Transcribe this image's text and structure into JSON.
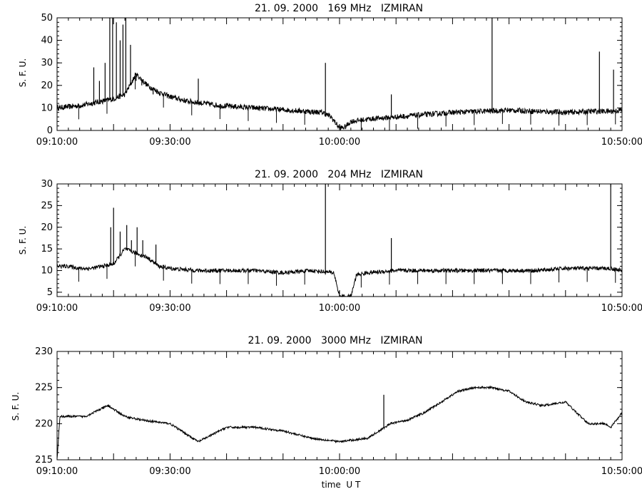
{
  "chart_data": [
    {
      "type": "line",
      "title": "21. 09. 2000   169 MHz   IZMIRAN",
      "xlabel": "",
      "ylabel": "S. F. U.",
      "xlim": [
        "09:10:00",
        "10:50:00"
      ],
      "xticks": [
        "09:10:00",
        "09:30:00",
        "10:00:00",
        "10:50:00"
      ],
      "ylim": [
        0,
        50
      ],
      "yticks": [
        "0",
        "10",
        "20",
        "30",
        "40",
        "50"
      ],
      "series": [
        {
          "color": "#000000",
          "x": [
            "09:10:00",
            "09:12:00",
            "09:14:00",
            "09:16:00",
            "09:18:00",
            "09:20:00",
            "09:22:00",
            "09:24:00",
            "09:26:00",
            "09:28:00",
            "09:30:00",
            "09:33:00",
            "09:36:00",
            "09:39:00",
            "09:42:00",
            "09:45:00",
            "09:48:00",
            "09:51:00",
            "09:54:00",
            "09:57:00",
            "09:58:30",
            "10:00:00",
            "10:01:00",
            "10:02:00",
            "10:05:00",
            "10:10:00",
            "10:15:00",
            "10:20:00",
            "10:25:00",
            "10:30:00",
            "10:35:00",
            "10:40:00",
            "10:45:00",
            "10:48:00",
            "10:50:00"
          ],
          "y": [
            10,
            10.5,
            11,
            12,
            13,
            14,
            16,
            25,
            20,
            17,
            15,
            13,
            12,
            11,
            10.5,
            10,
            9.5,
            9,
            8.5,
            8,
            6,
            1,
            1.5,
            4,
            5,
            6,
            7,
            8,
            8.5,
            9,
            8.5,
            8,
            8.5,
            8.5,
            9
          ],
          "spikes": [
            {
              "x": "09:16:30",
              "y": 28
            },
            {
              "x": "09:17:30",
              "y": 22
            },
            {
              "x": "09:18:30",
              "y": 30
            },
            {
              "x": "09:19:20",
              "y": 50
            },
            {
              "x": "09:19:50",
              "y": 50
            },
            {
              "x": "09:20:30",
              "y": 48
            },
            {
              "x": "09:21:10",
              "y": 40
            },
            {
              "x": "09:21:40",
              "y": 47
            },
            {
              "x": "09:22:10",
              "y": 50
            },
            {
              "x": "09:23:00",
              "y": 38
            },
            {
              "x": "09:24:00",
              "y": 22
            },
            {
              "x": "09:25:00",
              "y": 20
            },
            {
              "x": "09:27:00",
              "y": 16
            },
            {
              "x": "09:31:00",
              "y": 15
            },
            {
              "x": "09:35:00",
              "y": 23
            },
            {
              "x": "09:57:30",
              "y": 30
            },
            {
              "x": "10:09:10",
              "y": 16
            },
            {
              "x": "10:27:00",
              "y": 50
            },
            {
              "x": "10:46:00",
              "y": 35
            },
            {
              "x": "10:48:30",
              "y": 27
            }
          ]
        }
      ]
    },
    {
      "type": "line",
      "title": "21. 09. 2000   204 MHz   IZMIRAN",
      "xlabel": "",
      "ylabel": "S. F. U.",
      "xlim": [
        "09:10:00",
        "10:50:00"
      ],
      "xticks": [
        "09:10:00",
        "09:30:00",
        "10:00:00",
        "10:50:00"
      ],
      "ylim": [
        4,
        30
      ],
      "yticks": [
        "5",
        "10",
        "15",
        "20",
        "25",
        "30"
      ],
      "series": [
        {
          "color": "#000000",
          "x": [
            "09:10:00",
            "09:12:00",
            "09:14:00",
            "09:16:00",
            "09:18:00",
            "09:20:00",
            "09:22:00",
            "09:24:00",
            "09:26:00",
            "09:28:00",
            "09:30:00",
            "09:35:00",
            "09:40:00",
            "09:45:00",
            "09:50:00",
            "09:55:00",
            "09:59:00",
            "10:00:00",
            "10:01:00",
            "10:02:00",
            "10:03:00",
            "10:05:00",
            "10:10:00",
            "10:15:00",
            "10:20:00",
            "10:25:00",
            "10:30:00",
            "10:35:00",
            "10:40:00",
            "10:45:00",
            "10:48:00",
            "10:50:00"
          ],
          "y": [
            11,
            11,
            10.5,
            10.5,
            11,
            11.5,
            15,
            14,
            13,
            11,
            10.5,
            10,
            10,
            10,
            9.5,
            10,
            9.5,
            4,
            4,
            4,
            9,
            9.5,
            10,
            10,
            10,
            10,
            10,
            10,
            10.5,
            10.5,
            10.5,
            10
          ],
          "spikes": [
            {
              "x": "09:19:30",
              "y": 20
            },
            {
              "x": "09:20:00",
              "y": 24.5
            },
            {
              "x": "09:21:10",
              "y": 19
            },
            {
              "x": "09:22:20",
              "y": 20.5
            },
            {
              "x": "09:23:10",
              "y": 17
            },
            {
              "x": "09:24:10",
              "y": 20
            },
            {
              "x": "09:25:10",
              "y": 17
            },
            {
              "x": "09:27:30",
              "y": 16
            },
            {
              "x": "09:57:30",
              "y": 30
            },
            {
              "x": "10:09:10",
              "y": 17.5
            },
            {
              "x": "10:48:00",
              "y": 30
            }
          ]
        }
      ]
    },
    {
      "type": "line",
      "title": "21. 09. 2000   3000 MHz   IZMIRAN",
      "xlabel": "time  U T",
      "ylabel": "S. F. U.",
      "xlim": [
        "09:10:00",
        "10:50:00"
      ],
      "xticks": [
        "09:10:00",
        "09:30:00",
        "10:00:00",
        "10:50:00"
      ],
      "ylim": [
        215,
        230
      ],
      "yticks": [
        "215",
        "220",
        "225",
        "230"
      ],
      "series": [
        {
          "color": "#000000",
          "x": [
            "09:10:00",
            "09:10:30",
            "09:11:00",
            "09:15:00",
            "09:19:00",
            "09:22:00",
            "09:25:00",
            "09:30:00",
            "09:35:00",
            "09:40:00",
            "09:45:00",
            "09:50:00",
            "09:55:00",
            "10:00:00",
            "10:05:00",
            "10:08:00",
            "10:09:00",
            "10:12:00",
            "10:15:00",
            "10:18:00",
            "10:21:00",
            "10:24:00",
            "10:27:00",
            "10:30:00",
            "10:33:00",
            "10:36:00",
            "10:40:00",
            "10:44:00",
            "10:47:00",
            "10:48:00",
            "10:50:00"
          ],
          "y": [
            215,
            221,
            221,
            221,
            222.5,
            221,
            220.5,
            220,
            217.5,
            219.5,
            219.5,
            219,
            218,
            217.5,
            218,
            219.5,
            220,
            220.5,
            221.5,
            223,
            224.5,
            225,
            225,
            224.5,
            223,
            222.5,
            223,
            220,
            220,
            219.5,
            221.5
          ],
          "spikes": [
            {
              "x": "10:07:50",
              "y": 224
            }
          ]
        }
      ]
    }
  ]
}
